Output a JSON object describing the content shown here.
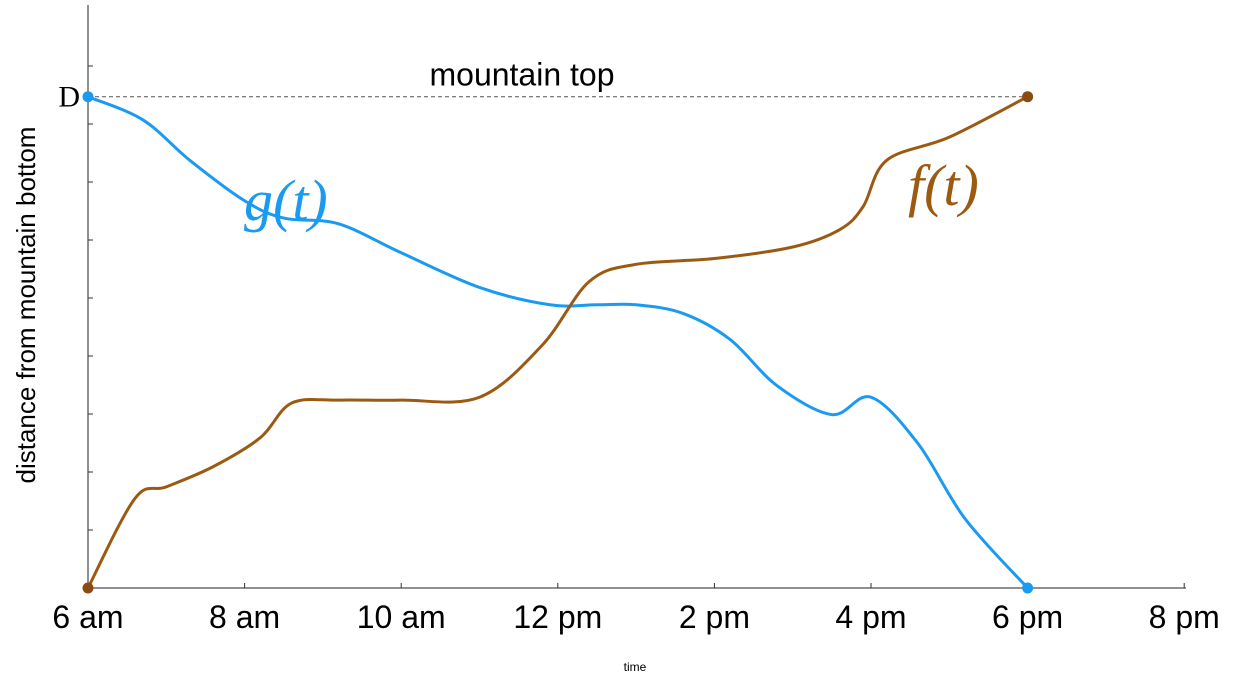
{
  "chart_data": {
    "type": "line",
    "xlabel": "time",
    "ylabel": "distance from mountain bottom",
    "x_ticks": [
      "6 am",
      "8 am",
      "10 am",
      "12 pm",
      "2 pm",
      "4 pm",
      "6 pm",
      "8 pm"
    ],
    "xlim": [
      6,
      20
    ],
    "ylim": [
      0,
      1.0
    ],
    "y_tick_label": {
      "label": "D",
      "value": 0.85
    },
    "annotation": {
      "text": "mountain top",
      "y": 0.85
    },
    "series": [
      {
        "name": "g(t)",
        "color": "#1a9af0",
        "endpoint_color": "#1a9af0",
        "x": [
          6.0,
          6.7,
          7.3,
          8.0,
          8.5,
          9.2,
          10.0,
          11.0,
          11.9,
          12.5,
          13.0,
          13.6,
          14.2,
          14.8,
          15.5,
          16.0,
          16.6,
          17.2,
          18.0
        ],
        "y": [
          0.85,
          0.81,
          0.74,
          0.67,
          0.64,
          0.63,
          0.58,
          0.52,
          0.49,
          0.49,
          0.49,
          0.475,
          0.43,
          0.35,
          0.3,
          0.33,
          0.25,
          0.12,
          0.0
        ]
      },
      {
        "name": "f(t)",
        "color": "#9b5a12",
        "endpoint_color": "#8a4a10",
        "x": [
          6.0,
          6.6,
          7.0,
          7.6,
          8.2,
          8.6,
          9.2,
          10.0,
          11.0,
          11.8,
          12.4,
          13.0,
          14.0,
          15.0,
          15.6,
          15.9,
          16.2,
          17.0,
          18.0
        ],
        "y": [
          0.0,
          0.155,
          0.175,
          0.21,
          0.26,
          0.32,
          0.325,
          0.325,
          0.33,
          0.42,
          0.53,
          0.56,
          0.57,
          0.59,
          0.62,
          0.66,
          0.74,
          0.78,
          0.85
        ]
      }
    ]
  }
}
